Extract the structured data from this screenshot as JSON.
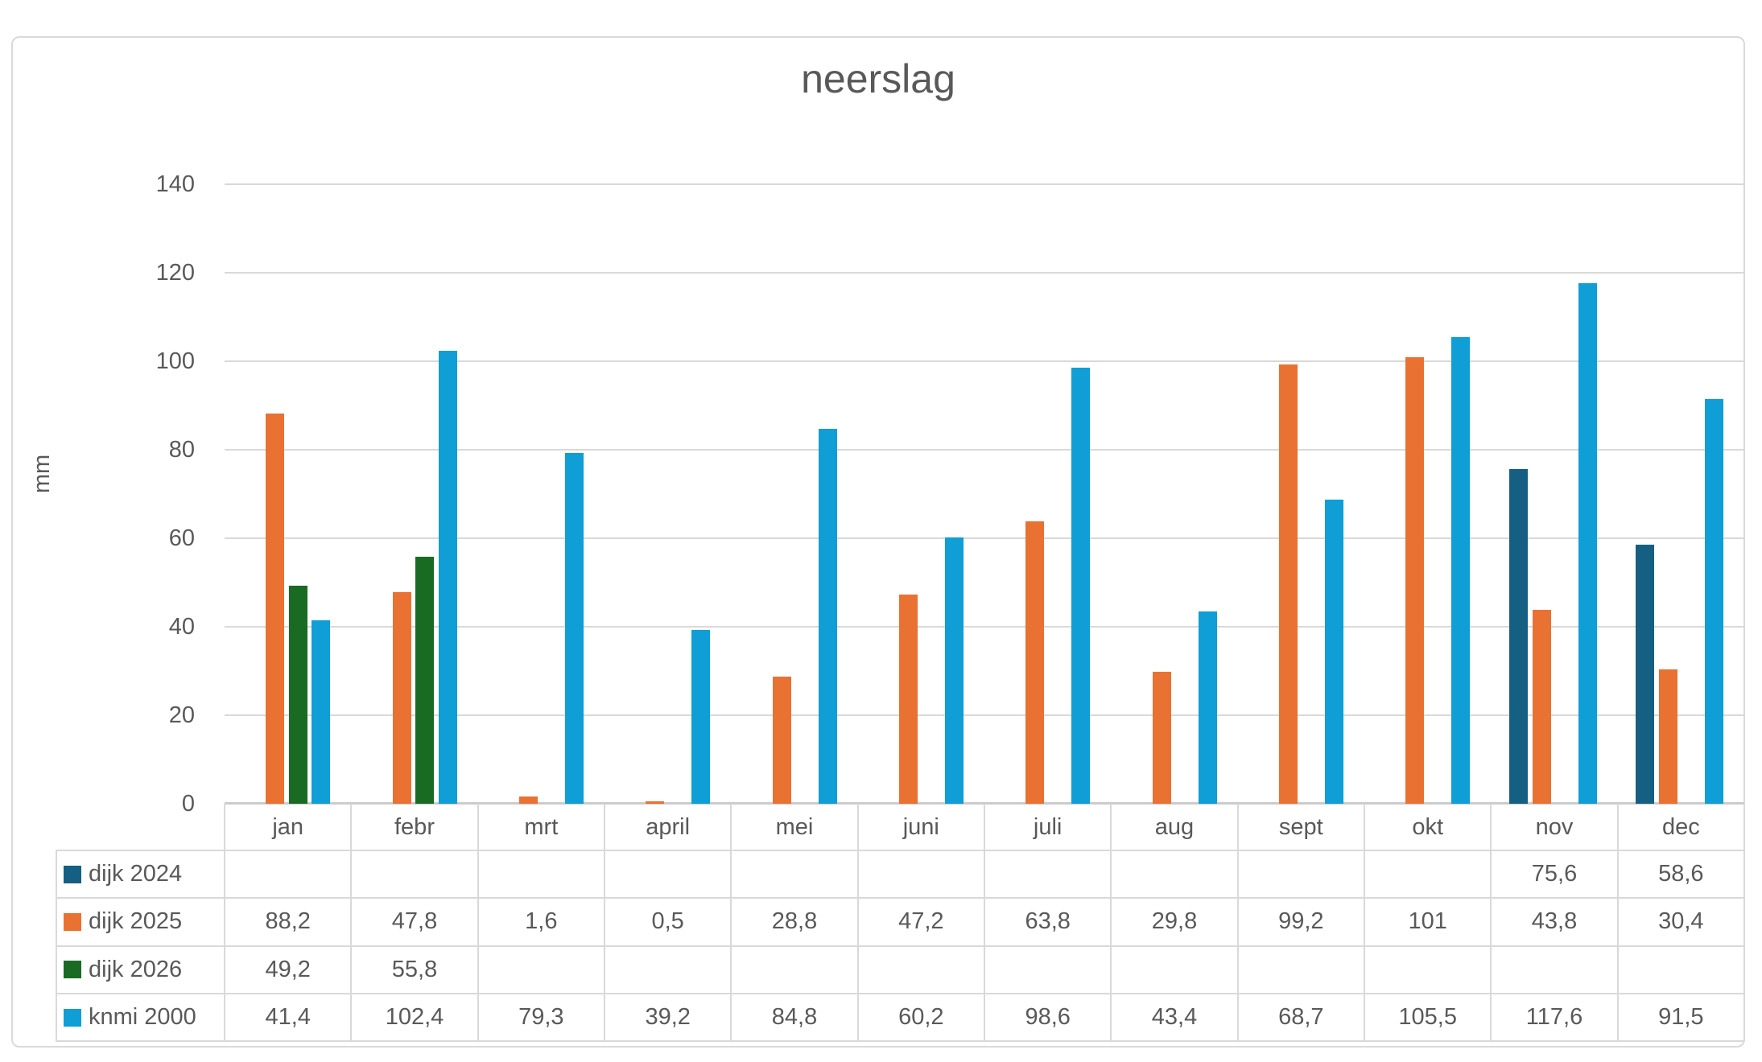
{
  "chart_data": {
    "type": "bar",
    "title": "neerslag",
    "ylabel": "mm",
    "xlabel": "",
    "ylim": [
      0,
      140
    ],
    "ytick_step": 20,
    "y_ticks": [
      0,
      20,
      40,
      60,
      80,
      100,
      120,
      140
    ],
    "grid": true,
    "legend_position": "data-table-left",
    "categories": [
      "jan",
      "febr",
      "mrt",
      "april",
      "mei",
      "juni",
      "juli",
      "aug",
      "sept",
      "okt",
      "nov",
      "dec"
    ],
    "series": [
      {
        "name": "dijk 2024",
        "color": "#156082",
        "values": [
          null,
          null,
          null,
          null,
          null,
          null,
          null,
          null,
          null,
          null,
          75.6,
          58.6
        ],
        "display": [
          "",
          "",
          "",
          "",
          "",
          "",
          "",
          "",
          "",
          "",
          "75,6",
          "58,6"
        ]
      },
      {
        "name": "dijk 2025",
        "color": "#E97132",
        "values": [
          88.2,
          47.8,
          1.6,
          0.5,
          28.8,
          47.2,
          63.8,
          29.8,
          99.2,
          101,
          43.8,
          30.4
        ],
        "display": [
          "88,2",
          "47,8",
          "1,6",
          "0,5",
          "28,8",
          "47,2",
          "63,8",
          "29,8",
          "99,2",
          "101",
          "43,8",
          "30,4"
        ]
      },
      {
        "name": "dijk 2026",
        "color": "#196B24",
        "values": [
          49.2,
          55.8,
          null,
          null,
          null,
          null,
          null,
          null,
          null,
          null,
          null,
          null
        ],
        "display": [
          "49,2",
          "55,8",
          "",
          "",
          "",
          "",
          "",
          "",
          "",
          "",
          "",
          ""
        ]
      },
      {
        "name": "knmi 2000",
        "color": "#0F9ED5",
        "values": [
          41.4,
          102.4,
          79.3,
          39.2,
          84.8,
          60.2,
          98.6,
          43.4,
          68.7,
          105.5,
          117.6,
          91.5
        ],
        "display": [
          "41,4",
          "102,4",
          "79,3",
          "39,2",
          "84,8",
          "60,2",
          "98,6",
          "43,4",
          "68,7",
          "105,5",
          "117,6",
          "91,5"
        ]
      }
    ]
  }
}
